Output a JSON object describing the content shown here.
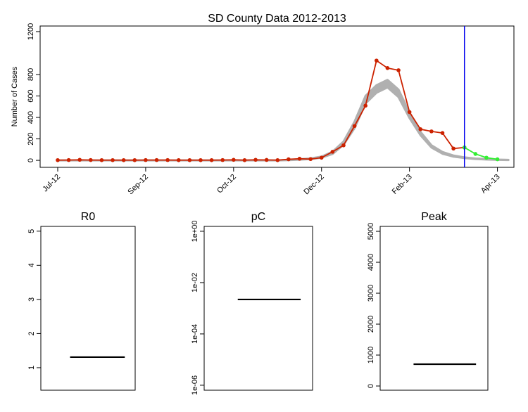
{
  "chart_data": [
    {
      "type": "line",
      "title": "SD County Data 2012-2013",
      "y_label": "Number of Cases",
      "x": [
        0,
        1,
        2,
        3,
        4,
        5,
        6,
        7,
        8,
        9,
        10,
        11,
        12,
        13,
        14,
        15,
        16,
        17,
        18,
        19,
        20,
        21,
        22,
        23,
        24,
        25,
        26,
        27,
        28,
        29,
        30,
        31,
        32,
        33,
        34,
        35,
        36,
        37,
        38,
        39,
        40,
        41
      ],
      "series": [
        {
          "color": "#cc2200",
          "values": [
            2,
            3,
            5,
            3,
            2,
            2,
            2,
            2,
            3,
            3,
            3,
            2,
            2,
            2,
            2,
            3,
            5,
            2,
            5,
            4,
            2,
            10,
            15,
            12,
            25,
            80,
            140,
            320,
            510,
            930,
            860,
            840,
            450,
            290,
            270,
            255,
            110,
            120,
            null,
            null,
            null,
            null
          ]
        },
        {
          "color": "#33ee33",
          "values": [
            null,
            null,
            null,
            null,
            null,
            null,
            null,
            null,
            null,
            null,
            null,
            null,
            null,
            null,
            null,
            null,
            null,
            null,
            null,
            null,
            null,
            null,
            null,
            null,
            null,
            null,
            null,
            null,
            null,
            null,
            null,
            null,
            null,
            null,
            null,
            null,
            null,
            120,
            60,
            25,
            10,
            null
          ]
        }
      ],
      "band": {
        "color": "#b0b0b0",
        "lower": [
          0,
          0,
          0,
          0,
          0,
          0,
          0,
          0,
          0,
          0,
          0,
          0,
          0,
          0,
          0,
          0,
          0,
          0,
          0,
          0,
          0,
          2,
          6,
          12,
          25,
          60,
          145,
          300,
          530,
          630,
          680,
          590,
          395,
          235,
          120,
          62,
          35,
          22,
          13,
          8,
          5,
          3
        ],
        "upper": [
          0,
          0,
          0,
          0,
          0,
          0,
          0,
          0,
          0,
          0,
          0,
          0,
          0,
          0,
          0,
          0,
          0,
          0,
          0,
          0,
          0,
          4,
          10,
          18,
          35,
          80,
          175,
          360,
          600,
          700,
          750,
          660,
          445,
          265,
          140,
          78,
          45,
          28,
          17,
          12,
          7,
          5
        ]
      },
      "vline": {
        "x": 37,
        "color": "#0000ee"
      },
      "xlim": [
        -1.6,
        41.5
      ],
      "xticks": [
        {
          "value": 0,
          "label": "Jul-12"
        },
        {
          "value": 8,
          "label": "Sep-12"
        },
        {
          "value": 16,
          "label": "Oct-12"
        },
        {
          "value": 24,
          "label": "Dec-12"
        },
        {
          "value": 32,
          "label": "Feb-13"
        },
        {
          "value": 40,
          "label": "Apr-13"
        }
      ],
      "ylim": [
        -65,
        1252
      ],
      "yticks": [
        0,
        200,
        400,
        600,
        800,
        1200
      ]
    },
    {
      "type": "hline",
      "title": "R0",
      "values": [
        1.31
      ],
      "ylim": [
        0.34,
        5.14
      ],
      "yticks": [
        1,
        2,
        3,
        4,
        5
      ]
    },
    {
      "type": "hline",
      "title": "pC",
      "values": [
        0.0022
      ],
      "log": true,
      "ylim": [
        6.4e-07,
        1.55
      ],
      "yticks": [
        {
          "value": 1e-06,
          "label": "1e-06"
        },
        {
          "value": 0.0001,
          "label": "1e-04"
        },
        {
          "value": 0.01,
          "label": "1e-02"
        },
        {
          "value": 1,
          "label": "1e+00"
        }
      ]
    },
    {
      "type": "hline",
      "title": "Peak",
      "values": [
        705
      ],
      "ylim": [
        -136,
        5160
      ],
      "yticks": [
        0,
        1000,
        2000,
        3000,
        4000,
        5000
      ]
    }
  ]
}
